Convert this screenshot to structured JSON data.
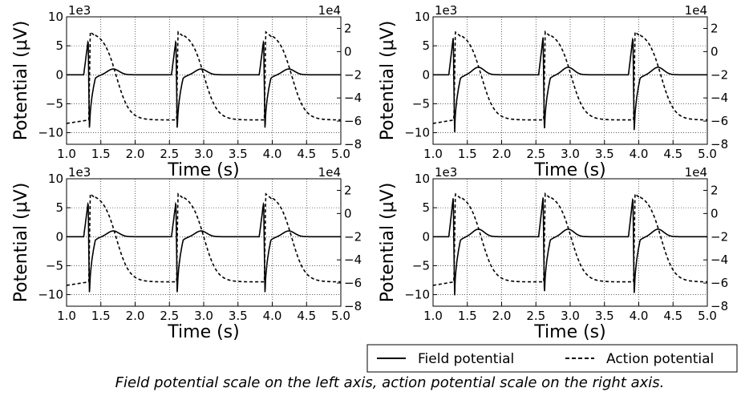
{
  "chart_data": {
    "type": "line",
    "layout": "2x2 grid of identical-axis subplots, shared legend below",
    "grid": true,
    "legend": {
      "placement": "bottom-right",
      "entries": [
        {
          "label": "Field potential",
          "style": "solid",
          "color": "#000000",
          "axis": "left"
        },
        {
          "label": "Action potential",
          "style": "dashed",
          "color": "#000000",
          "axis": "right"
        }
      ]
    },
    "caption": "Field potential scale on the left axis, action potential scale on the right axis.",
    "panels": [
      {
        "xlabel": "Time (s)",
        "ylabel": "Potential (μV)",
        "x_scale_label": "1e3",
        "y_right_scale_label": "1e4",
        "xlim": [
          1.0,
          5.0
        ],
        "ylim_left": [
          -12,
          10
        ],
        "ylim_right": [
          -8,
          3
        ],
        "x_ticks": [
          "1.0",
          "1.5",
          "2.0",
          "2.5",
          "3.0",
          "3.5",
          "4.0",
          "4.5",
          "5.0"
        ],
        "y_left_ticks": [
          "10",
          "5",
          "0",
          "−5",
          "−10"
        ],
        "y_right_ticks": [
          "2",
          "0",
          "−2",
          "−4",
          "−6",
          "−8"
        ],
        "beat_onsets": [
          1.26,
          2.54,
          3.82
        ],
        "field_peak": 6.0,
        "field_trough": -10.5,
        "field_bump": 1.0,
        "action_peak": 1.7,
        "action_rest": -5.9,
        "action_baseline_start": -6.2
      },
      {
        "xlabel": "Time (s)",
        "ylabel": "Potential (μV)",
        "x_scale_label": "1e3",
        "y_right_scale_label": "1e4",
        "xlim": [
          1.0,
          5.0
        ],
        "ylim_left": [
          -12,
          10
        ],
        "ylim_right": [
          -8,
          3
        ],
        "x_ticks": [
          "1.0",
          "1.5",
          "2.0",
          "2.5",
          "3.0",
          "3.5",
          "4.0",
          "4.5",
          "5.0"
        ],
        "y_left_ticks": [
          "10",
          "5",
          "0",
          "−5",
          "−10"
        ],
        "y_right_ticks": [
          "2",
          "0",
          "−2",
          "−4",
          "−6",
          "−8"
        ],
        "beat_onsets": [
          1.24,
          2.55,
          3.86
        ],
        "field_peak": 6.5,
        "field_trough": -11.0,
        "field_bump": 1.3,
        "action_peak": 1.7,
        "action_rest": -5.9,
        "action_baseline_start": -6.2
      },
      {
        "xlabel": "Time (s)",
        "ylabel": "Potential (μV)",
        "x_scale_label": "1e3",
        "y_right_scale_label": "1e4",
        "xlim": [
          1.0,
          5.0
        ],
        "ylim_left": [
          -12,
          10
        ],
        "ylim_right": [
          -8,
          3
        ],
        "x_ticks": [
          "1.0",
          "1.5",
          "2.0",
          "2.5",
          "3.0",
          "3.5",
          "4.0",
          "4.5",
          "5.0"
        ],
        "y_left_ticks": [
          "10",
          "5",
          "0",
          "−5",
          "−10"
        ],
        "y_right_ticks": [
          "2",
          "0",
          "−2",
          "−4",
          "−6",
          "−8"
        ],
        "beat_onsets": [
          1.26,
          2.54,
          3.82
        ],
        "field_peak": 6.0,
        "field_trough": -11.0,
        "field_bump": 1.0,
        "action_peak": 1.7,
        "action_rest": -5.9,
        "action_baseline_start": -6.2
      },
      {
        "xlabel": "Time (s)",
        "ylabel": "Potential (μV)",
        "x_scale_label": "1e3",
        "y_right_scale_label": "1e4",
        "xlim": [
          1.0,
          5.0
        ],
        "ylim_left": [
          -12,
          10
        ],
        "ylim_right": [
          -8,
          3
        ],
        "x_ticks": [
          "1.0",
          "1.5",
          "2.0",
          "2.5",
          "3.0",
          "3.5",
          "4.0",
          "4.5",
          "5.0"
        ],
        "y_left_ticks": [
          "10",
          "5",
          "0",
          "−5",
          "−10"
        ],
        "y_right_ticks": [
          "2",
          "0",
          "−2",
          "−4",
          "−6",
          "−8"
        ],
        "beat_onsets": [
          1.24,
          2.55,
          3.86
        ],
        "field_peak": 6.8,
        "field_trough": -11.2,
        "field_bump": 1.3,
        "action_peak": 1.7,
        "action_rest": -5.9,
        "action_baseline_start": -6.2
      }
    ]
  }
}
